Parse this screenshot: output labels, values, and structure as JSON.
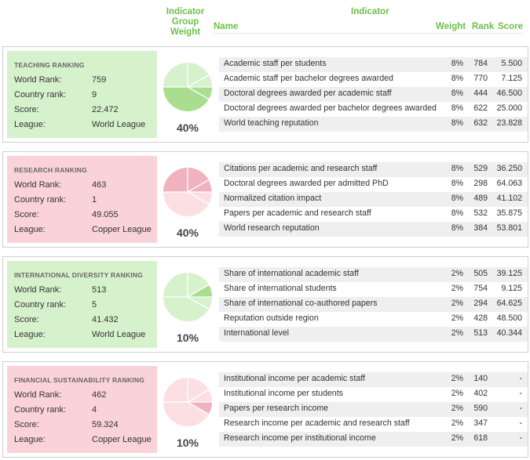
{
  "header": {
    "group_weight": "Indicator Group Weight",
    "indicator": "Indicator",
    "name": "Name",
    "weight": "Weight",
    "rank": "Rank",
    "score": "Score"
  },
  "colors": {
    "green_box": "#d6f2cc",
    "pink_box": "#f9d3d8",
    "accent": "#6cc04a"
  },
  "panels": [
    {
      "title": "TEACHING RANKING",
      "world_rank_label": "World Rank:",
      "world_rank": "759",
      "country_rank_label": "Country rank:",
      "country_rank": "9",
      "score_label": "Score:",
      "score": "22.472",
      "league_label": "League:",
      "league": "World League",
      "group_weight": "40%",
      "indicators": [
        {
          "name": "Academic staff per students",
          "weight": "8%",
          "rank": "784",
          "score": "5.500"
        },
        {
          "name": "Academic staff per bachelor degrees awarded",
          "weight": "8%",
          "rank": "770",
          "score": "7.125"
        },
        {
          "name": "Doctoral degrees awarded per academic staff",
          "weight": "8%",
          "rank": "444",
          "score": "46.500"
        },
        {
          "name": "Doctoral degrees awarded per bachelor degrees awarded",
          "weight": "8%",
          "rank": "622",
          "score": "25.000"
        },
        {
          "name": "World teaching reputation",
          "weight": "8%",
          "rank": "632",
          "score": "23.828"
        }
      ]
    },
    {
      "title": "RESEARCH RANKING",
      "world_rank_label": "World Rank:",
      "world_rank": "463",
      "country_rank_label": "Country rank:",
      "country_rank": "1",
      "score_label": "Score:",
      "score": "49.055",
      "league_label": "League:",
      "league": "Copper League",
      "group_weight": "40%",
      "indicators": [
        {
          "name": "Citations per academic and research staff",
          "weight": "8%",
          "rank": "529",
          "score": "36.250"
        },
        {
          "name": "Doctoral degrees awarded per admitted PhD",
          "weight": "8%",
          "rank": "298",
          "score": "64.063"
        },
        {
          "name": "Normalized citation impact",
          "weight": "8%",
          "rank": "489",
          "score": "41.102"
        },
        {
          "name": "Papers per academic and research staff",
          "weight": "8%",
          "rank": "532",
          "score": "35.875"
        },
        {
          "name": "World research reputation",
          "weight": "8%",
          "rank": "384",
          "score": "53.801"
        }
      ]
    },
    {
      "title": "INTERNATIONAL DIVERSITY RANKING",
      "world_rank_label": "World Rank:",
      "world_rank": "513",
      "country_rank_label": "Country rank:",
      "country_rank": "5",
      "score_label": "Score:",
      "score": "41.432",
      "league_label": "League:",
      "league": "World League",
      "group_weight": "10%",
      "indicators": [
        {
          "name": "Share of international academic staff",
          "weight": "2%",
          "rank": "505",
          "score": "39.125"
        },
        {
          "name": "Share of international students",
          "weight": "2%",
          "rank": "754",
          "score": "9.125"
        },
        {
          "name": "Share of international co-authored papers",
          "weight": "2%",
          "rank": "294",
          "score": "64.625"
        },
        {
          "name": "Reputation outside region",
          "weight": "2%",
          "rank": "428",
          "score": "48.500"
        },
        {
          "name": "International level",
          "weight": "2%",
          "rank": "513",
          "score": "40.344"
        }
      ]
    },
    {
      "title": "FINANCIAL SUSTAINABILITY RANKING",
      "world_rank_label": "World Rank:",
      "world_rank": "462",
      "country_rank_label": "Country rank:",
      "country_rank": "4",
      "score_label": "Score:",
      "score": "59.324",
      "league_label": "League:",
      "league": "Copper League",
      "group_weight": "10%",
      "indicators": [
        {
          "name": "Institutional income per academic staff",
          "weight": "2%",
          "rank": "140",
          "score": "-"
        },
        {
          "name": "Institutional income per students",
          "weight": "2%",
          "rank": "402",
          "score": "-"
        },
        {
          "name": "Papers per research income",
          "weight": "2%",
          "rank": "590",
          "score": "-"
        },
        {
          "name": "Research income per academic and research staff",
          "weight": "2%",
          "rank": "347",
          "score": "-"
        },
        {
          "name": "Research income per institutional income",
          "weight": "2%",
          "rank": "618",
          "score": "-"
        }
      ]
    }
  ]
}
